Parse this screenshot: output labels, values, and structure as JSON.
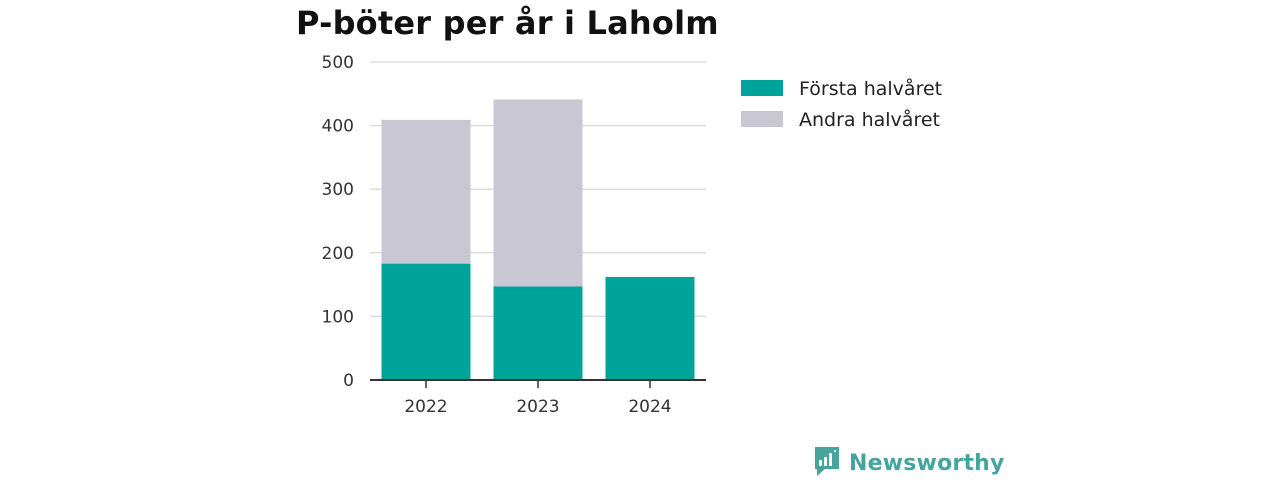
{
  "chart_data": {
    "type": "bar",
    "stacked": true,
    "title": "P-böter per år i Laholm",
    "categories": [
      "2022",
      "2023",
      "2024"
    ],
    "series": [
      {
        "name": "Första halvåret",
        "color": "#00a39a",
        "values": [
          183,
          147,
          162
        ]
      },
      {
        "name": "Andra halvåret",
        "color": "#c8c7d3",
        "values": [
          226,
          294,
          null
        ]
      }
    ],
    "ylim": [
      0,
      500
    ],
    "yticks": [
      0,
      100,
      200,
      300,
      400,
      500
    ],
    "grid": true,
    "legend_position": "right"
  },
  "brand": {
    "name": "Newsworthy",
    "icon": "chart-bubble-icon",
    "color": "#45a59c"
  }
}
